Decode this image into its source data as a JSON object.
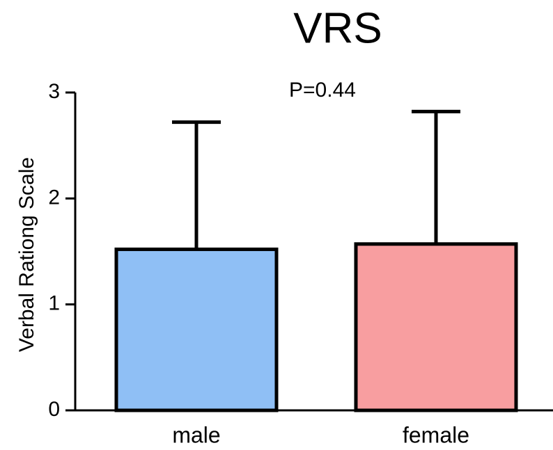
{
  "chart_data": {
    "type": "bar",
    "title": "VRS",
    "annotation": "P=0.44",
    "y_label": "Verbal Rationg Scale",
    "categories": [
      "male",
      "female"
    ],
    "values": [
      1.52,
      1.57
    ],
    "errors": [
      1.2,
      1.25
    ],
    "colors": [
      "#8fbff5",
      "#f89ea0"
    ],
    "ylim": [
      0,
      3
    ],
    "yticks": [
      0,
      1,
      2,
      3
    ]
  }
}
